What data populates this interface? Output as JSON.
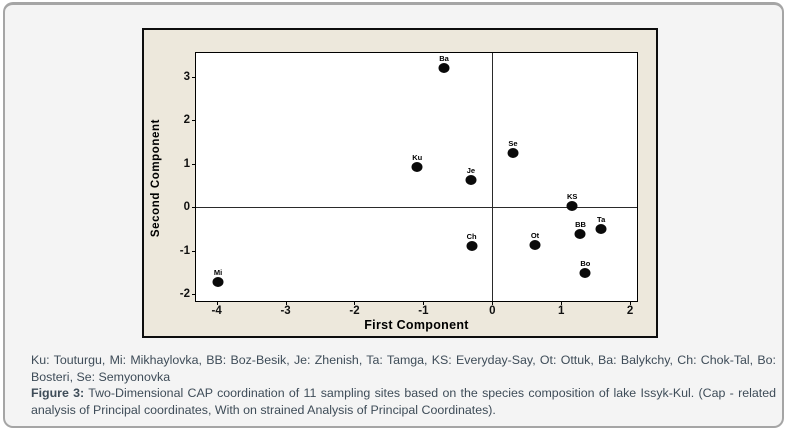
{
  "page": {
    "background": "#f4f4f4",
    "border_color": "#a5a5a5"
  },
  "figure": {
    "panel_background": "#ede8dc",
    "plot_background": "#ffffff"
  },
  "chart_data": {
    "type": "scatter",
    "xlabel": "First Component",
    "ylabel": "Second Component",
    "xlim": [
      -4.3,
      2.1
    ],
    "ylim": [
      -2.15,
      3.55
    ],
    "xticks": [
      -4,
      -3,
      -2,
      -1,
      0,
      1,
      2
    ],
    "yticks": [
      -2,
      -1,
      0,
      1,
      2,
      3
    ],
    "grid": false,
    "legend_position": "none",
    "reference_lines": {
      "x": 0,
      "y": 0
    },
    "marker_color": "#0a0a0a",
    "points": [
      {
        "label": "Ba",
        "x": -0.7,
        "y": 3.2
      },
      {
        "label": "Se",
        "x": 0.3,
        "y": 1.25
      },
      {
        "label": "Ku",
        "x": -1.09,
        "y": 0.92
      },
      {
        "label": "Je",
        "x": -0.31,
        "y": 0.63
      },
      {
        "label": "KS",
        "x": 1.16,
        "y": 0.03
      },
      {
        "label": "Ta",
        "x": 1.58,
        "y": -0.49
      },
      {
        "label": "BB",
        "x": 1.28,
        "y": -0.61
      },
      {
        "label": "Ot",
        "x": 0.62,
        "y": -0.86
      },
      {
        "label": "Ch",
        "x": -0.3,
        "y": -0.89
      },
      {
        "label": "Bo",
        "x": 1.35,
        "y": -1.51
      },
      {
        "label": "Mi",
        "x": -3.98,
        "y": -1.72
      }
    ]
  },
  "caption": {
    "legend": "Ku: Touturgu, Mi: Mikhaylovka, BB: Boz-Besik, Je: Zhenish, Ta: Tamga, KS: Everyday-Say, Ot: Ottuk, Ba: Balykchy, Ch: Chok-Tal, Bo: Bosteri, Se: Semyonovka",
    "figure_label": "Figure 3:",
    "figure_text": "Two-Dimensional CAP coordination of 11 sampling sites based on the species composition of lake Issyk-Kul. (Cap - related analysis of Principal coordinates, With on strained Analysis of Principal Coordinates)."
  }
}
